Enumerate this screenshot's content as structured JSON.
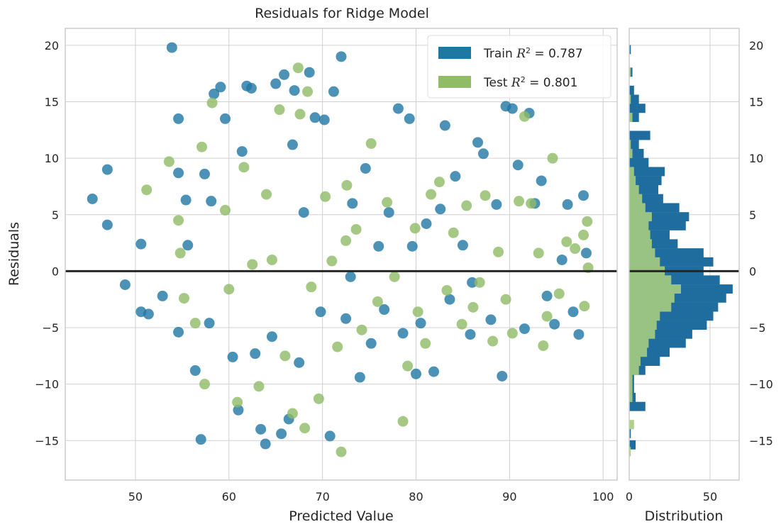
{
  "chart_data": [
    {
      "type": "scatter",
      "title": "Residuals for Ridge Model",
      "xlabel": "Predicted Value",
      "ylabel": "Residuals",
      "xlim": [
        42.5,
        101.5
      ],
      "ylim": [
        -18.5,
        21.5
      ],
      "x_ticks": [
        50,
        60,
        70,
        80,
        90,
        100
      ],
      "y_ticks": [
        -15,
        -10,
        -5,
        0,
        5,
        10,
        15,
        20
      ],
      "grid": true,
      "zero_line": 0,
      "legend_position": "top-right",
      "series": [
        {
          "name": "Train R² = 0.787",
          "legend_prefix": "Train ",
          "legend_r2": "R",
          "legend_value": " = 0.787",
          "color": "#1f77a4",
          "points": [
            [
              45.4,
              6.4
            ],
            [
              47.0,
              9.0
            ],
            [
              47.0,
              4.1
            ],
            [
              48.9,
              -1.2
            ],
            [
              50.6,
              2.4
            ],
            [
              50.6,
              -3.6
            ],
            [
              51.4,
              -3.8
            ],
            [
              52.9,
              -2.2
            ],
            [
              53.9,
              19.8
            ],
            [
              54.6,
              13.5
            ],
            [
              54.6,
              8.7
            ],
            [
              54.6,
              -5.4
            ],
            [
              55.4,
              6.3
            ],
            [
              55.6,
              2.3
            ],
            [
              56.4,
              -8.8
            ],
            [
              57.0,
              -14.9
            ],
            [
              57.4,
              8.6
            ],
            [
              57.9,
              -4.6
            ],
            [
              58.1,
              6.2
            ],
            [
              58.4,
              15.7
            ],
            [
              59.1,
              16.3
            ],
            [
              59.6,
              13.5
            ],
            [
              60.4,
              -7.6
            ],
            [
              61.0,
              -12.3
            ],
            [
              61.4,
              10.6
            ],
            [
              61.9,
              16.4
            ],
            [
              62.4,
              16.2
            ],
            [
              62.8,
              -7.3
            ],
            [
              63.4,
              -14.0
            ],
            [
              63.9,
              -15.3
            ],
            [
              64.6,
              -5.8
            ],
            [
              65.0,
              16.6
            ],
            [
              65.6,
              -14.4
            ],
            [
              65.9,
              17.4
            ],
            [
              66.4,
              -13.1
            ],
            [
              67.0,
              16.0
            ],
            [
              67.5,
              -8.1
            ],
            [
              68.0,
              5.2
            ],
            [
              68.6,
              17.6
            ],
            [
              69.2,
              13.6
            ],
            [
              69.8,
              -3.6
            ],
            [
              70.2,
              13.4
            ],
            [
              70.8,
              -14.6
            ],
            [
              71.2,
              15.9
            ],
            [
              72.0,
              19.0
            ],
            [
              72.5,
              -4.2
            ],
            [
              73.2,
              6.0
            ],
            [
              74.0,
              -9.4
            ],
            [
              74.6,
              9.1
            ],
            [
              75.2,
              -6.4
            ],
            [
              76.0,
              2.2
            ],
            [
              76.6,
              -3.4
            ],
            [
              77.1,
              5.2
            ],
            [
              78.1,
              14.4
            ],
            [
              78.6,
              -5.5
            ],
            [
              79.3,
              13.5
            ],
            [
              80.0,
              -9.1
            ],
            [
              80.5,
              -4.6
            ],
            [
              81.1,
              4.2
            ],
            [
              81.9,
              -8.9
            ],
            [
              82.6,
              5.5
            ],
            [
              83.1,
              12.9
            ],
            [
              83.6,
              -2.5
            ],
            [
              84.2,
              8.4
            ],
            [
              85.0,
              2.3
            ],
            [
              85.8,
              -5.6
            ],
            [
              86.6,
              11.4
            ],
            [
              87.2,
              10.4
            ],
            [
              88.0,
              -4.3
            ],
            [
              88.6,
              5.9
            ],
            [
              89.2,
              -9.3
            ],
            [
              89.6,
              14.6
            ],
            [
              90.3,
              14.4
            ],
            [
              90.9,
              9.4
            ],
            [
              91.6,
              -5.1
            ],
            [
              92.1,
              14.0
            ],
            [
              92.7,
              6.0
            ],
            [
              93.4,
              8.0
            ],
            [
              94.0,
              -2.2
            ],
            [
              94.8,
              -4.7
            ],
            [
              95.6,
              1.0
            ],
            [
              96.2,
              5.9
            ],
            [
              96.8,
              -3.6
            ],
            [
              97.4,
              -5.6
            ],
            [
              97.9,
              6.7
            ],
            [
              98.2,
              1.6
            ],
            [
              66.8,
              11.2
            ],
            [
              73.0,
              -0.5
            ],
            [
              79.6,
              2.2
            ],
            [
              86.0,
              -1.0
            ]
          ]
        },
        {
          "name": "Test R² = 0.801",
          "legend_prefix": "Test ",
          "legend_r2": "R",
          "legend_value": " = 0.801",
          "color": "#8fbc65",
          "points": [
            [
              51.2,
              7.2
            ],
            [
              53.6,
              9.7
            ],
            [
              54.6,
              4.5
            ],
            [
              54.8,
              1.6
            ],
            [
              55.2,
              -2.4
            ],
            [
              56.4,
              -4.6
            ],
            [
              57.1,
              11.0
            ],
            [
              57.4,
              -10.0
            ],
            [
              58.2,
              14.9
            ],
            [
              59.6,
              5.4
            ],
            [
              60.0,
              -1.6
            ],
            [
              60.9,
              -11.6
            ],
            [
              61.6,
              9.2
            ],
            [
              62.5,
              0.6
            ],
            [
              63.2,
              -10.2
            ],
            [
              64.0,
              6.8
            ],
            [
              64.6,
              1.0
            ],
            [
              65.4,
              14.3
            ],
            [
              66.0,
              -7.5
            ],
            [
              66.8,
              -12.6
            ],
            [
              67.4,
              18.0
            ],
            [
              67.6,
              13.9
            ],
            [
              68.1,
              -13.9
            ],
            [
              68.4,
              15.9
            ],
            [
              68.8,
              -1.4
            ],
            [
              69.6,
              -11.3
            ],
            [
              70.3,
              6.6
            ],
            [
              71.0,
              0.9
            ],
            [
              71.6,
              -6.7
            ],
            [
              72.0,
              -16.0
            ],
            [
              72.6,
              7.6
            ],
            [
              73.6,
              3.7
            ],
            [
              74.2,
              -5.2
            ],
            [
              75.2,
              11.3
            ],
            [
              75.9,
              -2.7
            ],
            [
              76.9,
              6.1
            ],
            [
              77.7,
              -0.5
            ],
            [
              78.6,
              -13.3
            ],
            [
              79.1,
              -8.4
            ],
            [
              79.9,
              3.8
            ],
            [
              81.0,
              -6.4
            ],
            [
              81.6,
              6.8
            ],
            [
              82.5,
              7.9
            ],
            [
              83.3,
              -1.7
            ],
            [
              84.0,
              3.4
            ],
            [
              84.9,
              -4.7
            ],
            [
              85.4,
              5.8
            ],
            [
              86.1,
              -3.2
            ],
            [
              87.4,
              6.7
            ],
            [
              88.2,
              -6.2
            ],
            [
              88.8,
              1.7
            ],
            [
              89.6,
              -2.5
            ],
            [
              90.3,
              -5.5
            ],
            [
              91.0,
              6.2
            ],
            [
              91.6,
              13.7
            ],
            [
              92.3,
              6.0
            ],
            [
              93.1,
              1.6
            ],
            [
              94.0,
              -4.0
            ],
            [
              94.6,
              10.0
            ],
            [
              95.3,
              -2.0
            ],
            [
              96.1,
              2.6
            ],
            [
              97.0,
              2.0
            ],
            [
              97.9,
              3.2
            ],
            [
              98.0,
              -3.1
            ],
            [
              98.3,
              4.4
            ],
            [
              98.4,
              0.3
            ],
            [
              72.5,
              2.7
            ],
            [
              80.2,
              -3.6
            ],
            [
              86.8,
              -1.0
            ],
            [
              93.6,
              -6.6
            ]
          ]
        }
      ]
    },
    {
      "type": "bar",
      "orientation": "horizontal",
      "xlabel": "Distribution",
      "xlim": [
        0,
        68
      ],
      "x_ticks": [
        0,
        50
      ],
      "ylim": [
        -18.5,
        21.5
      ],
      "y_ticks": [
        -15,
        -10,
        -5,
        0,
        5,
        10,
        15,
        20
      ],
      "bin_width": 0.85,
      "series": [
        {
          "name": "Train",
          "color": "#1f6d9e",
          "bins": [
            [
              -15.4,
              4
            ],
            [
              -14.4,
              1
            ],
            [
              -12.0,
              10
            ],
            [
              -11.2,
              4
            ],
            [
              -10.4,
              3
            ],
            [
              -9.6,
              3
            ],
            [
              -8.8,
              10
            ],
            [
              -8.0,
              19
            ],
            [
              -7.2,
              25
            ],
            [
              -6.4,
              35
            ],
            [
              -5.6,
              39
            ],
            [
              -4.8,
              48
            ],
            [
              -4.0,
              52
            ],
            [
              -3.2,
              55
            ],
            [
              -2.4,
              60
            ],
            [
              -1.6,
              64
            ],
            [
              -0.8,
              56
            ],
            [
              0.0,
              46
            ],
            [
              0.8,
              52
            ],
            [
              1.6,
              46
            ],
            [
              2.4,
              30
            ],
            [
              3.2,
              25
            ],
            [
              4.0,
              35
            ],
            [
              4.8,
              37
            ],
            [
              5.6,
              31
            ],
            [
              6.4,
              21
            ],
            [
              7.2,
              18
            ],
            [
              8.0,
              20
            ],
            [
              8.8,
              22
            ],
            [
              9.6,
              12
            ],
            [
              10.4,
              9
            ],
            [
              11.2,
              6
            ],
            [
              12.0,
              13
            ],
            [
              13.6,
              6
            ],
            [
              14.4,
              10
            ],
            [
              15.2,
              6
            ],
            [
              16.0,
              3
            ],
            [
              17.6,
              2
            ],
            [
              19.6,
              1
            ]
          ]
        },
        {
          "name": "Test",
          "color": "#a6cc7e",
          "bins": [
            [
              -16.0,
              1
            ],
            [
              -13.6,
              3
            ],
            [
              -11.2,
              2
            ],
            [
              -10.4,
              2
            ],
            [
              -9.6,
              2
            ],
            [
              -8.8,
              6
            ],
            [
              -8.0,
              7
            ],
            [
              -7.2,
              11
            ],
            [
              -6.4,
              12
            ],
            [
              -5.6,
              16
            ],
            [
              -4.8,
              17
            ],
            [
              -4.0,
              19
            ],
            [
              -3.2,
              26
            ],
            [
              -2.4,
              28
            ],
            [
              -1.6,
              32
            ],
            [
              -0.8,
              26
            ],
            [
              0.0,
              22
            ],
            [
              0.8,
              19
            ],
            [
              1.6,
              16
            ],
            [
              2.4,
              14
            ],
            [
              3.2,
              13
            ],
            [
              4.0,
              12
            ],
            [
              4.8,
              14
            ],
            [
              5.6,
              10
            ],
            [
              6.4,
              8
            ],
            [
              7.2,
              6
            ],
            [
              8.0,
              4
            ],
            [
              8.8,
              3
            ],
            [
              10.4,
              2
            ],
            [
              11.2,
              1
            ],
            [
              13.6,
              2
            ],
            [
              15.2,
              1
            ],
            [
              17.6,
              1
            ]
          ]
        }
      ]
    }
  ]
}
